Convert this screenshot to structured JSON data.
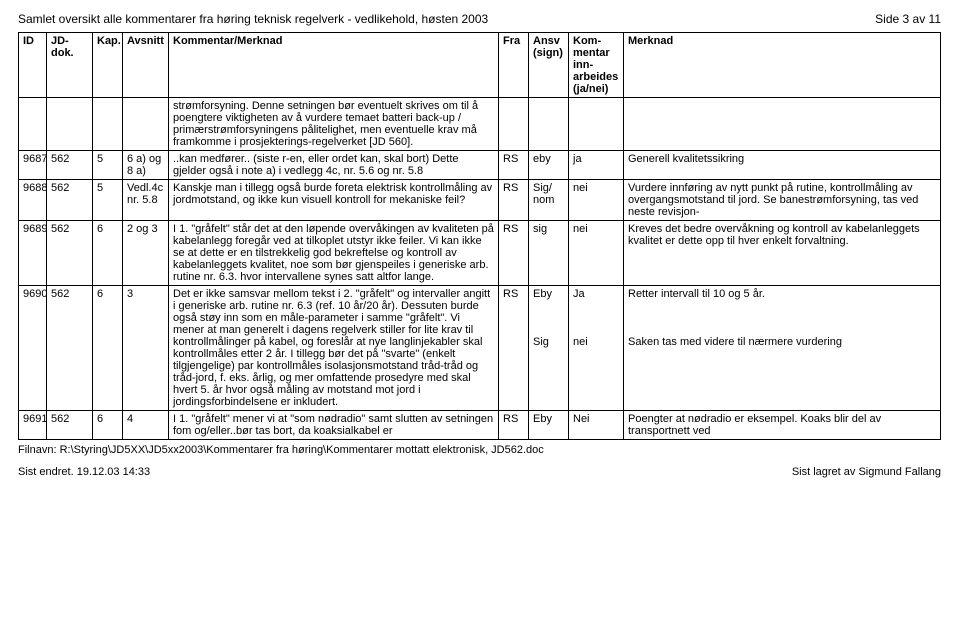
{
  "header": {
    "title": "Samlet oversikt alle kommentarer fra høring teknisk regelverk - vedlikehold, høsten 2003",
    "page": "Side 3 av 11"
  },
  "table": {
    "headers": {
      "id": "ID",
      "jd": "JD-dok.",
      "kap": "Kap.",
      "avsnitt": "Avsnitt",
      "kommentar": "Kommentar/Merknad",
      "fra": "Fra",
      "ansv": "Ansv (sign)",
      "inn": "Kom-mentar inn-arbeides (ja/nei)",
      "merknad": "Merknad"
    },
    "rows": [
      {
        "id": "",
        "jd": "",
        "kap": "",
        "avsnitt": "",
        "kommentar": "strømforsyning. Denne setningen bør eventuelt skrives om til å poengtere viktigheten av å vurdere temaet batteri back-up / primærstrømforsyningens pålitelighet, men eventuelle krav må framkomme i prosjekterings-regelverket [JD 560].",
        "fra": "",
        "ansv": "",
        "inn": "",
        "merknad": ""
      },
      {
        "id": "9687",
        "jd": "562",
        "kap": "5",
        "avsnitt": "6 a) og 8 a)",
        "kommentar": "..kan medfører.. (siste r-en, eller ordet kan, skal bort) Dette gjelder også i note a) i vedlegg 4c, nr. 5.6 og nr. 5.8",
        "fra": "RS",
        "ansv": "eby",
        "inn": "ja",
        "merknad": "Generell kvalitetssikring"
      },
      {
        "id": "9688",
        "jd": "562",
        "kap": "5",
        "avsnitt": "Vedl.4c nr. 5.8",
        "kommentar": "Kanskje man i tillegg også burde foreta elektrisk kontrollmåling av jordmotstand, og ikke kun visuell kontroll for mekaniske feil?",
        "fra": "RS",
        "ansv": "Sig/ nom",
        "inn": "nei",
        "merknad": "Vurdere innføring av nytt punkt på rutine, kontrollmåling av overgangsmotstand til jord. Se banestrømforsyning, tas ved neste revisjon-"
      },
      {
        "id": "9689",
        "jd": "562",
        "kap": "6",
        "avsnitt": "2 og 3",
        "kommentar": "I 1. \"gråfelt\" står det at den løpende overvåkingen av kvaliteten på kabelanlegg foregår ved at tilkoplet utstyr ikke feiler. Vi kan ikke se at dette er en tilstrekkelig god bekreftelse og kontroll av kabelanleggets kvalitet, noe som bør gjenspeiles i generiske arb. rutine nr. 6.3. hvor intervallene synes satt altfor lange.",
        "fra": "RS",
        "ansv": "sig",
        "inn": "nei",
        "merknad": "Kreves det bedre overvåkning og kontroll av kabelanleggets kvalitet er dette opp til hver enkelt forvaltning."
      },
      {
        "id": "9690",
        "jd": "562",
        "kap": "6",
        "avsnitt": "3",
        "kommentar": "Det er ikke samsvar mellom tekst i 2. \"gråfelt\" og intervaller angitt i generiske arb. rutine nr. 6.3 (ref. 10 år/20 år). Dessuten burde også støy inn som en måle-parameter i samme \"gråfelt\". Vi mener at man generelt i dagens regelverk stiller for lite krav til kontrollmålinger på kabel, og foreslår at nye langlinjekabler skal kontrollmåles etter 2 år. I tillegg bør det på \"svarte\" (enkelt tilgjengelige) par kontrollmåles isolasjonsmotstand tråd-tråd og tråd-jord, f. eks. årlig, og mer omfattende prosedyre med skal hvert 5. år hvor også måling av motstand mot jord i jordingsforbindelsene er inkludert.",
        "fra": "RS",
        "ansv": "Eby\n\n\n\nSig",
        "inn": "Ja\n\n\n\nnei",
        "merknad": "Retter intervall til 10 og 5 år.\n\n\n\nSaken tas med videre til nærmere vurdering"
      },
      {
        "id": "9691",
        "jd": "562",
        "kap": "6",
        "avsnitt": "4",
        "kommentar": "I 1. \"gråfelt\" mener vi at \"som nødradio\" samt slutten av setningen fom og/eller..bør tas bort, da koaksialkabel er",
        "fra": "RS",
        "ansv": "Eby",
        "inn": "Nei",
        "merknad": "Poengter at nødradio er eksempel. Koaks blir del av transportnett ved"
      }
    ]
  },
  "footer": {
    "filepath": "Filnavn: R:\\Styring\\JD5XX\\JD5xx2003\\Kommentarer fra høring\\Kommentarer mottatt elektronisk, JD562.doc",
    "left": "Sist endret. 19.12.03 14:33",
    "right": "Sist lagret av Sigmund Fallang"
  }
}
